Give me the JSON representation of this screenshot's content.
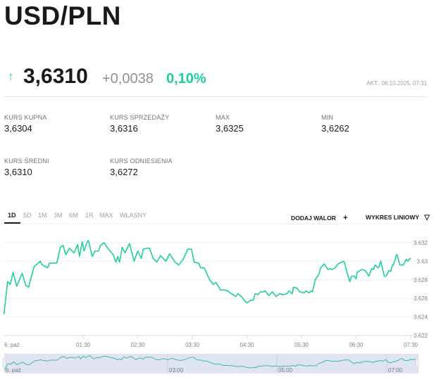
{
  "title": "USD/PLN",
  "quote": {
    "direction_icon": "arrow-up-icon",
    "price": "3,6310",
    "change": "+0,0038",
    "change_pct": "0,10%",
    "updated": "AKT.: 06.10.2025, 07:31",
    "up_color": "#1fcf9f"
  },
  "stats": [
    {
      "label": "KURS KUPNA",
      "value": "3,6304"
    },
    {
      "label": "KURS SPRZEDAŻY",
      "value": "3,6316"
    },
    {
      "label": "MAX",
      "value": "3,6325"
    },
    {
      "label": "MIN",
      "value": "3,6262"
    },
    {
      "label": "KURS ŚREDNI",
      "value": "3,6310"
    },
    {
      "label": "KURS ODNIESIENIA",
      "value": "3,6272"
    }
  ],
  "range_tabs": [
    "1D",
    "5D",
    "1M",
    "3M",
    "6M",
    "1R",
    "MAX",
    "WŁASNY"
  ],
  "active_tab": "1D",
  "controls": {
    "add_label": "DODAJ WALOR",
    "add_icon": "+",
    "chart_type_label": "WYKRES LINIOWY",
    "chart_type_icon": "triangle-down-icon"
  },
  "chart_data": {
    "type": "line",
    "color": "#1fcf9f",
    "ylim": [
      3.622,
      3.6325
    ],
    "yticks": [
      "3.632",
      "3.63",
      "3.628",
      "3.626",
      "3.624",
      "3.622"
    ],
    "xticks": [
      "6. paź",
      "01:30",
      "02:30",
      "03:30",
      "04:30",
      "05:30",
      "06:30",
      "07:30"
    ],
    "grid": true,
    "navigator_labels": [
      "6. paź",
      "03:00",
      "05:00",
      "07:00"
    ],
    "points": [
      [
        "00:03",
        3.6243
      ],
      [
        "00:07",
        3.6278
      ],
      [
        "00:10",
        3.6275
      ],
      [
        "00:13",
        3.6288
      ],
      [
        "00:17",
        3.6273
      ],
      [
        "00:23",
        3.6287
      ],
      [
        "00:27",
        3.6274
      ],
      [
        "00:30",
        3.6272
      ],
      [
        "00:36",
        3.6294
      ],
      [
        "00:43",
        3.63
      ],
      [
        "00:45",
        3.6296
      ],
      [
        "00:51",
        3.6293
      ],
      [
        "00:53",
        3.6298
      ],
      [
        "01:01",
        3.6298
      ],
      [
        "01:05",
        3.6315
      ],
      [
        "01:08",
        3.6317
      ],
      [
        "01:11",
        3.6307
      ],
      [
        "01:15",
        3.6314
      ],
      [
        "01:20",
        3.6309
      ],
      [
        "01:24",
        3.6318
      ],
      [
        "01:26",
        3.6305
      ],
      [
        "01:29",
        3.6321
      ],
      [
        "01:31",
        3.6311
      ],
      [
        "01:35",
        3.6322
      ],
      [
        "01:36",
        3.6322
      ],
      [
        "01:40",
        3.6305
      ],
      [
        "01:43",
        3.6311
      ],
      [
        "01:47",
        3.6311
      ],
      [
        "01:49",
        3.6317
      ],
      [
        "01:53",
        3.632
      ],
      [
        "01:57",
        3.6314
      ],
      [
        "02:03",
        3.6307
      ],
      [
        "02:06",
        3.6299
      ],
      [
        "02:08",
        3.6305
      ],
      [
        "02:10",
        3.6299
      ],
      [
        "02:13",
        3.6315
      ],
      [
        "02:16",
        3.6309
      ],
      [
        "02:21",
        3.6319
      ],
      [
        "02:26",
        3.63
      ],
      [
        "02:30",
        3.6311
      ],
      [
        "02:34",
        3.6303
      ],
      [
        "02:36",
        3.6313
      ],
      [
        "02:40",
        3.6314
      ],
      [
        "02:43",
        3.6314
      ],
      [
        "02:47",
        3.6303
      ],
      [
        "02:51",
        3.6299
      ],
      [
        "02:55",
        3.6306
      ],
      [
        "03:01",
        3.63
      ],
      [
        "03:05",
        3.6308
      ],
      [
        "03:11",
        3.6299
      ],
      [
        "03:15",
        3.6296
      ],
      [
        "03:20",
        3.6302
      ],
      [
        "03:25",
        3.6313
      ],
      [
        "03:29",
        3.6313
      ],
      [
        "03:32",
        3.6299
      ],
      [
        "03:37",
        3.6298
      ],
      [
        "03:39",
        3.6293
      ],
      [
        "03:43",
        3.6293
      ],
      [
        "03:49",
        3.628
      ],
      [
        "03:53",
        3.6275
      ],
      [
        "03:56",
        3.6277
      ],
      [
        "04:01",
        3.6269
      ],
      [
        "04:06",
        3.6269
      ],
      [
        "04:09",
        3.6268
      ],
      [
        "04:13",
        3.6265
      ],
      [
        "04:18",
        3.6262
      ],
      [
        "04:20",
        3.6265
      ],
      [
        "04:24",
        3.6262
      ],
      [
        "04:27",
        3.6258
      ],
      [
        "04:30",
        3.6255
      ],
      [
        "04:34",
        3.6258
      ],
      [
        "04:37",
        3.6258
      ],
      [
        "04:39",
        3.6265
      ],
      [
        "04:42",
        3.6264
      ],
      [
        "04:45",
        3.6267
      ],
      [
        "04:48",
        3.6267
      ],
      [
        "04:50",
        3.6268
      ],
      [
        "04:54",
        3.6263
      ],
      [
        "04:58",
        3.6267
      ],
      [
        "05:02",
        3.6262
      ],
      [
        "05:06",
        3.6265
      ],
      [
        "05:10",
        3.6264
      ],
      [
        "05:14",
        3.6265
      ],
      [
        "05:16",
        3.6268
      ],
      [
        "05:20",
        3.6265
      ],
      [
        "05:21",
        3.6272
      ],
      [
        "05:25",
        3.6271
      ],
      [
        "05:28",
        3.6267
      ],
      [
        "05:33",
        3.6266
      ],
      [
        "05:35",
        3.6268
      ],
      [
        "05:38",
        3.6266
      ],
      [
        "05:41",
        3.6268
      ],
      [
        "05:42",
        3.6267
      ],
      [
        "05:45",
        3.628
      ],
      [
        "05:49",
        3.6286
      ],
      [
        "05:51",
        3.6293
      ],
      [
        "05:55",
        3.6297
      ],
      [
        "05:59",
        3.6291
      ],
      [
        "06:01",
        3.6292
      ],
      [
        "06:04",
        3.6291
      ],
      [
        "06:07",
        3.6293
      ],
      [
        "06:10",
        3.6297
      ],
      [
        "06:16",
        3.63
      ],
      [
        "06:17",
        3.6299
      ],
      [
        "06:20",
        3.6288
      ],
      [
        "06:23",
        3.6278
      ],
      [
        "06:25",
        3.6284
      ],
      [
        "06:28",
        3.6284
      ],
      [
        "06:30",
        3.6281
      ],
      [
        "06:31",
        3.6288
      ],
      [
        "06:36",
        3.6291
      ],
      [
        "06:40",
        3.629
      ],
      [
        "06:44",
        3.6284
      ],
      [
        "06:47",
        3.6292
      ],
      [
        "06:49",
        3.6291
      ],
      [
        "06:51",
        3.6296
      ],
      [
        "06:54",
        3.6293
      ],
      [
        "06:55",
        3.6294
      ],
      [
        "06:57",
        3.63
      ],
      [
        "07:01",
        3.6284
      ],
      [
        "07:03",
        3.6284
      ],
      [
        "07:06",
        3.629
      ],
      [
        "07:08",
        3.6289
      ],
      [
        "07:10",
        3.6296
      ],
      [
        "07:11",
        3.6296
      ],
      [
        "07:14",
        3.6306
      ],
      [
        "07:15",
        3.6307
      ],
      [
        "07:18",
        3.6296
      ],
      [
        "07:22",
        3.6296
      ],
      [
        "07:25",
        3.6302
      ],
      [
        "07:27",
        3.63
      ],
      [
        "07:29",
        3.6303
      ],
      [
        "07:30",
        3.6302
      ]
    ]
  }
}
